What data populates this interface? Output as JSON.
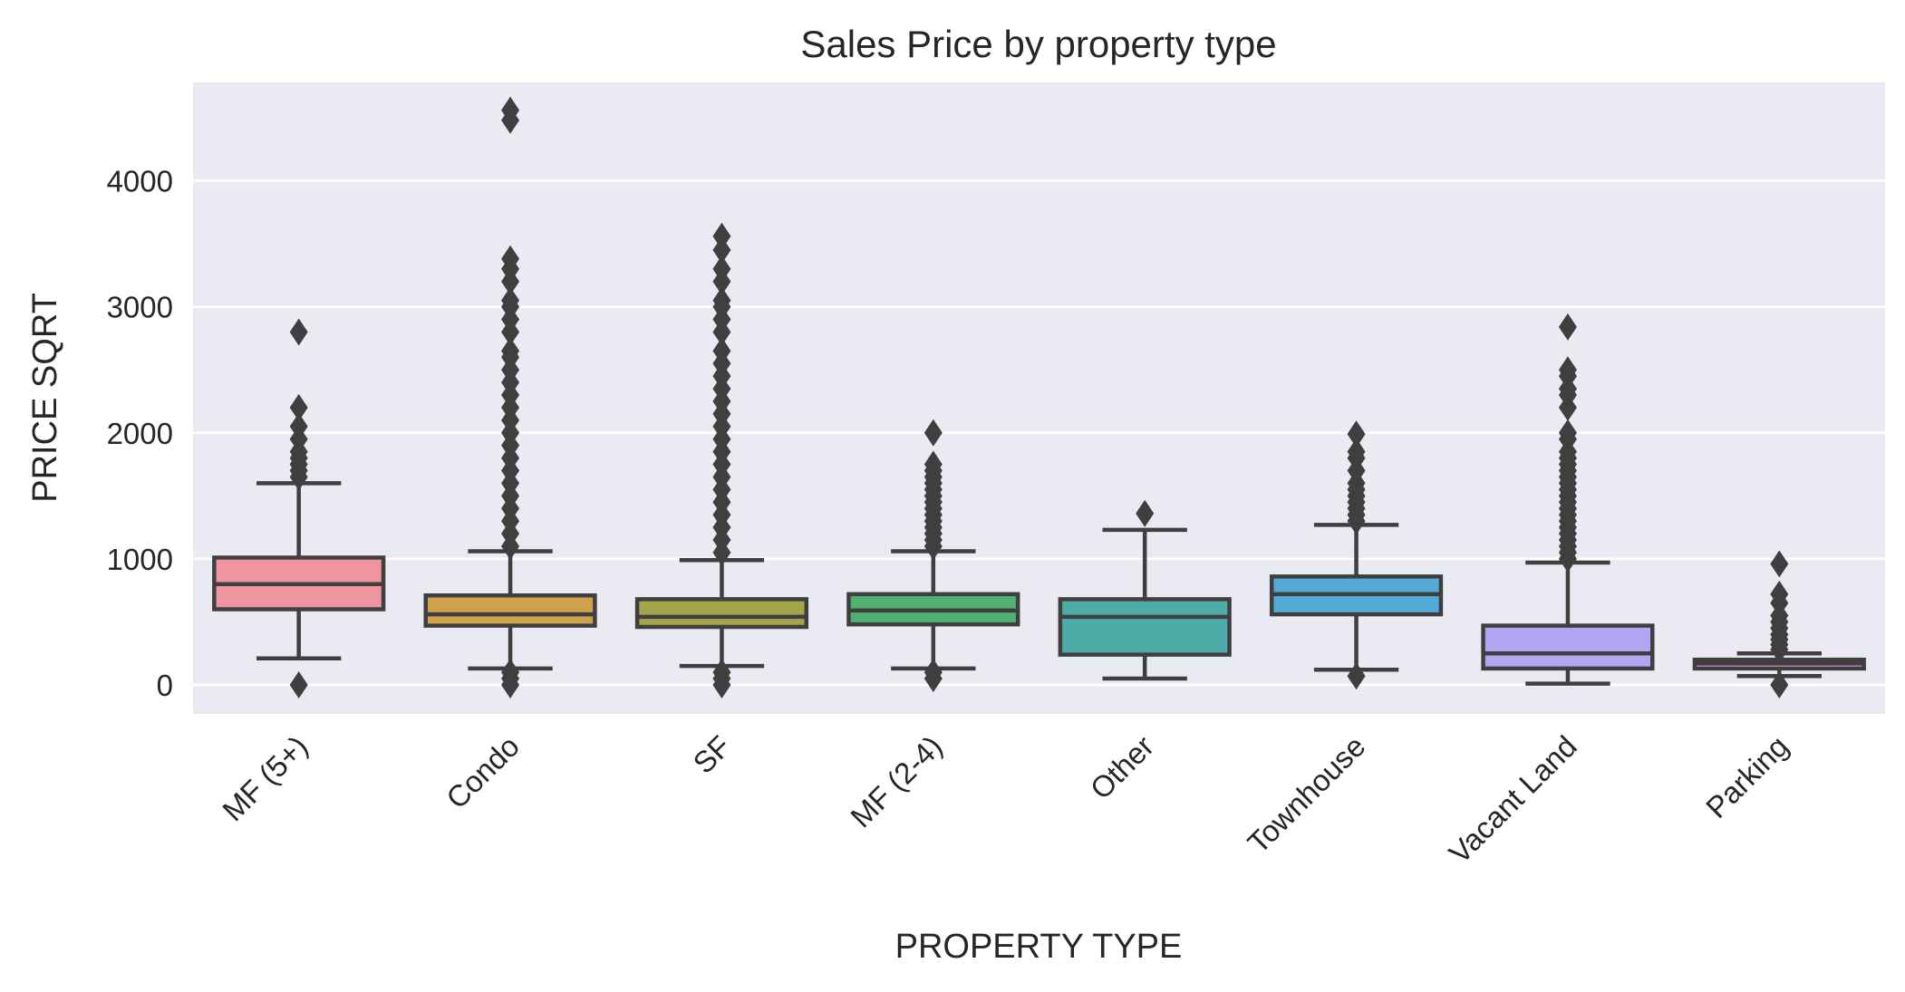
{
  "chart_data": {
    "type": "box",
    "title": "Sales Price by property type",
    "xlabel": "PROPERTY TYPE",
    "ylabel": "PRICE SQRT",
    "ylim": [
      -230,
      4780
    ],
    "yticks": [
      0,
      1000,
      2000,
      3000,
      4000
    ],
    "grid": true,
    "categories": [
      "MF (5+)",
      "Condo",
      "SF",
      "MF (2-4)",
      "Other",
      "Townhouse",
      "Vacant Land",
      "Parking"
    ],
    "series": [
      {
        "color": "#f0949f",
        "whisker_low": 210,
        "q1": 600,
        "median": 800,
        "q3": 1010,
        "whisker_high": 1600,
        "outliers": [
          0,
          1650,
          1700,
          1750,
          1800,
          1850,
          1950,
          2050,
          2200,
          2800
        ]
      },
      {
        "color": "#d0a14b",
        "whisker_low": 130,
        "q1": 470,
        "median": 560,
        "q3": 710,
        "whisker_high": 1060,
        "outliers": [
          0,
          50,
          100,
          1100,
          1200,
          1300,
          1400,
          1500,
          1600,
          1700,
          1800,
          1900,
          2000,
          2100,
          2200,
          2300,
          2400,
          2500,
          2600,
          2650,
          2800,
          2900,
          3000,
          3050,
          3200,
          3300,
          3380,
          4480,
          4560
        ]
      },
      {
        "color": "#a2a54a",
        "whisker_low": 150,
        "q1": 460,
        "median": 540,
        "q3": 680,
        "whisker_high": 990,
        "outliers": [
          0,
          50,
          100,
          1050,
          1150,
          1250,
          1350,
          1450,
          1550,
          1650,
          1750,
          1850,
          1950,
          2050,
          2150,
          2250,
          2350,
          2450,
          2550,
          2650,
          2800,
          2900,
          3000,
          3050,
          3200,
          3300,
          3450,
          3560
        ]
      },
      {
        "color": "#4fb270",
        "whisker_low": 130,
        "q1": 480,
        "median": 590,
        "q3": 720,
        "whisker_high": 1060,
        "outliers": [
          50,
          100,
          1100,
          1150,
          1200,
          1250,
          1300,
          1350,
          1400,
          1450,
          1500,
          1550,
          1600,
          1650,
          1700,
          1750,
          2000
        ]
      },
      {
        "color": "#4eaca8",
        "whisker_low": 50,
        "q1": 240,
        "median": 540,
        "q3": 680,
        "whisker_high": 1230,
        "outliers": [
          1360
        ]
      },
      {
        "color": "#55abd8",
        "whisker_low": 120,
        "q1": 560,
        "median": 720,
        "q3": 860,
        "whisker_high": 1270,
        "outliers": [
          70,
          1300,
          1350,
          1400,
          1450,
          1500,
          1550,
          1600,
          1700,
          1800,
          1850,
          1990
        ]
      },
      {
        "color": "#b3a5f1",
        "whisker_low": 10,
        "q1": 130,
        "median": 250,
        "q3": 470,
        "whisker_high": 970,
        "outliers": [
          1000,
          1050,
          1100,
          1150,
          1200,
          1250,
          1300,
          1350,
          1400,
          1450,
          1500,
          1550,
          1600,
          1650,
          1700,
          1750,
          1800,
          1850,
          1950,
          2000,
          2200,
          2300,
          2350,
          2450,
          2500,
          2840
        ]
      },
      {
        "color": "#f09bd9",
        "whisker_low": 70,
        "q1": 130,
        "median": 170,
        "q3": 200,
        "whisker_high": 250,
        "outliers": [
          0,
          280,
          320,
          360,
          400,
          450,
          500,
          550,
          650,
          720,
          960
        ]
      }
    ]
  }
}
